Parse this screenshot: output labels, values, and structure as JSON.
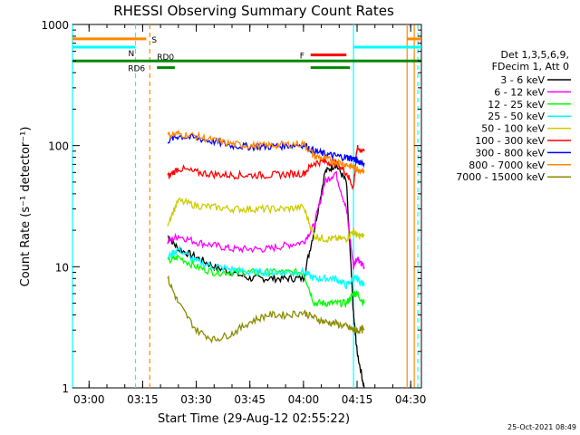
{
  "chart_data": {
    "type": "line",
    "title": "RHESSI Observing Summary Count Rates",
    "xlabel": "Start Time (29-Aug-12 02:55:22)",
    "ylabel": "Count Rate (s⁻¹ detector⁻¹)",
    "y_scale": "log",
    "ylim": [
      1,
      1000
    ],
    "xlim": [
      "02:55:22",
      "04:33:00"
    ],
    "x_ticks": [
      "03:00",
      "03:15",
      "03:30",
      "03:45",
      "04:00",
      "04:15",
      "04:30"
    ],
    "y_ticks": [
      "1",
      "10",
      "100",
      "1000"
    ],
    "footer_date": "25-Oct-2021 08:49",
    "legend": {
      "placement": "right",
      "header": [
        "Det 1,3,5,6,9,",
        "FDecim 1, Att 0"
      ]
    },
    "series": [
      {
        "name": "3 - 6 keV",
        "color": "#000000",
        "x": [
          "03:22",
          "03:25",
          "03:30",
          "03:35",
          "03:40",
          "03:45",
          "03:50",
          "03:55",
          "04:00",
          "04:03",
          "04:06",
          "04:09",
          "04:12",
          "04:14",
          "04:15",
          "04:17"
        ],
        "values": [
          18,
          14,
          12,
          10,
          9,
          8,
          8,
          8,
          8,
          20,
          60,
          70,
          50,
          4,
          2,
          1
        ]
      },
      {
        "name": "6 - 12 keV",
        "color": "#ff00ff",
        "x": [
          "03:22",
          "03:25",
          "03:30",
          "03:35",
          "03:40",
          "03:45",
          "03:50",
          "03:55",
          "04:00",
          "04:03",
          "04:06",
          "04:09",
          "04:12",
          "04:14",
          "04:15",
          "04:17"
        ],
        "values": [
          16,
          18,
          16,
          15,
          14,
          14,
          14,
          15,
          16,
          22,
          50,
          60,
          30,
          10,
          12,
          10
        ]
      },
      {
        "name": "12 - 25 keV",
        "color": "#00ff00",
        "x": [
          "03:22",
          "03:25",
          "03:30",
          "03:35",
          "03:40",
          "03:45",
          "03:50",
          "03:55",
          "04:00",
          "04:03",
          "04:06",
          "04:09",
          "04:12",
          "04:14",
          "04:15",
          "04:17"
        ],
        "values": [
          11,
          12,
          10,
          9,
          9,
          9,
          9,
          9,
          9,
          5,
          5,
          5,
          5,
          6,
          6,
          5
        ]
      },
      {
        "name": "25 - 50 keV",
        "color": "#00ffff",
        "x": [
          "03:22",
          "03:25",
          "03:30",
          "03:35",
          "03:40",
          "03:45",
          "03:50",
          "03:55",
          "04:00",
          "04:03",
          "04:06",
          "04:09",
          "04:12",
          "04:14",
          "04:15",
          "04:17"
        ],
        "values": [
          12,
          14,
          11,
          10,
          9.5,
          9,
          9,
          9,
          9,
          8,
          8,
          8,
          7,
          8,
          8,
          7
        ]
      },
      {
        "name": "50 - 100 keV",
        "color": "#cccc00",
        "x": [
          "03:22",
          "03:25",
          "03:30",
          "03:35",
          "03:40",
          "03:45",
          "03:50",
          "03:55",
          "04:00",
          "04:03",
          "04:06",
          "04:09",
          "04:12",
          "04:14",
          "04:15",
          "04:17"
        ],
        "values": [
          23,
          35,
          32,
          31,
          30,
          30,
          30,
          30,
          31,
          18,
          17,
          17,
          17,
          20,
          18,
          18
        ]
      },
      {
        "name": "100 - 300 keV",
        "color": "#ff0000",
        "x": [
          "03:22",
          "03:25",
          "03:30",
          "03:35",
          "03:40",
          "03:45",
          "03:50",
          "03:55",
          "04:00",
          "04:03",
          "04:06",
          "04:09",
          "04:12",
          "04:14",
          "04:15",
          "04:17"
        ],
        "values": [
          55,
          65,
          60,
          58,
          57,
          57,
          57,
          58,
          59,
          72,
          74,
          72,
          60,
          45,
          95,
          90
        ]
      },
      {
        "name": "300 - 800 keV",
        "color": "#0000ff",
        "x": [
          "03:22",
          "03:25",
          "03:30",
          "03:35",
          "03:40",
          "03:45",
          "03:50",
          "03:55",
          "04:00",
          "04:03",
          "04:06",
          "04:09",
          "04:12",
          "04:14",
          "04:15",
          "04:17"
        ],
        "values": [
          110,
          120,
          115,
          108,
          100,
          98,
          98,
          100,
          102,
          90,
          85,
          82,
          80,
          78,
          75,
          72
        ]
      },
      {
        "name": "800 - 7000 keV",
        "color": "#ff8800",
        "x": [
          "03:22",
          "03:25",
          "03:30",
          "03:35",
          "03:40",
          "03:45",
          "03:50",
          "03:55",
          "04:00",
          "04:03",
          "04:06",
          "04:09",
          "04:12",
          "04:14",
          "04:15",
          "04:17"
        ],
        "values": [
          122,
          125,
          120,
          110,
          103,
          100,
          100,
          102,
          104,
          82,
          78,
          74,
          70,
          66,
          64,
          63
        ]
      },
      {
        "name": "7000 - 15000 keV",
        "color": "#8b8b00",
        "x": [
          "03:22",
          "03:25",
          "03:30",
          "03:35",
          "03:40",
          "03:45",
          "03:50",
          "03:55",
          "04:00",
          "04:03",
          "04:06",
          "04:09",
          "04:12",
          "04:14",
          "04:15",
          "04:17"
        ],
        "values": [
          8,
          5,
          3,
          2.5,
          2.8,
          3.5,
          4,
          4,
          4.2,
          3.8,
          3.5,
          3.4,
          3.2,
          3.0,
          3.0,
          3.0
        ]
      }
    ],
    "flag_bars": [
      {
        "label": "S",
        "color": "#ff8800",
        "segments": [
          [
            "02:55:22",
            "03:16"
          ],
          [
            "04:29",
            "04:33"
          ]
        ],
        "y": 760
      },
      {
        "label": "N",
        "color": "#00ffff",
        "segments": [
          [
            "02:55:22",
            "03:13"
          ],
          [
            "04:14",
            "04:33"
          ]
        ],
        "y": 650
      },
      {
        "label": "F",
        "color": "#ff0000",
        "segments": [
          [
            "04:02",
            "04:12"
          ]
        ],
        "y": 560
      },
      {
        "label": "RD0",
        "color": "#008800",
        "segments": [
          [
            "02:55:22",
            "04:33"
          ]
        ],
        "y": 500
      },
      {
        "label": "RD6",
        "color": "#008800",
        "segments": [
          [
            "03:19",
            "03:24"
          ],
          [
            "04:02",
            "04:13"
          ]
        ],
        "y": 440
      }
    ],
    "vertical_markers": [
      {
        "x": "02:55:22",
        "color": "#00ffff",
        "style": "solid"
      },
      {
        "x": "03:13",
        "color": "#00ffff",
        "style": "dashed"
      },
      {
        "x": "03:17",
        "color": "#ff8800",
        "style": "dashed"
      },
      {
        "x": "04:14",
        "color": "#00ffff",
        "style": "solid"
      },
      {
        "x": "04:29",
        "color": "#ff8800",
        "style": "solid"
      },
      {
        "x": "04:31",
        "color": "#ff8800",
        "style": "solid"
      },
      {
        "x": "04:32",
        "color": "#00ffff",
        "style": "dashed"
      }
    ]
  }
}
